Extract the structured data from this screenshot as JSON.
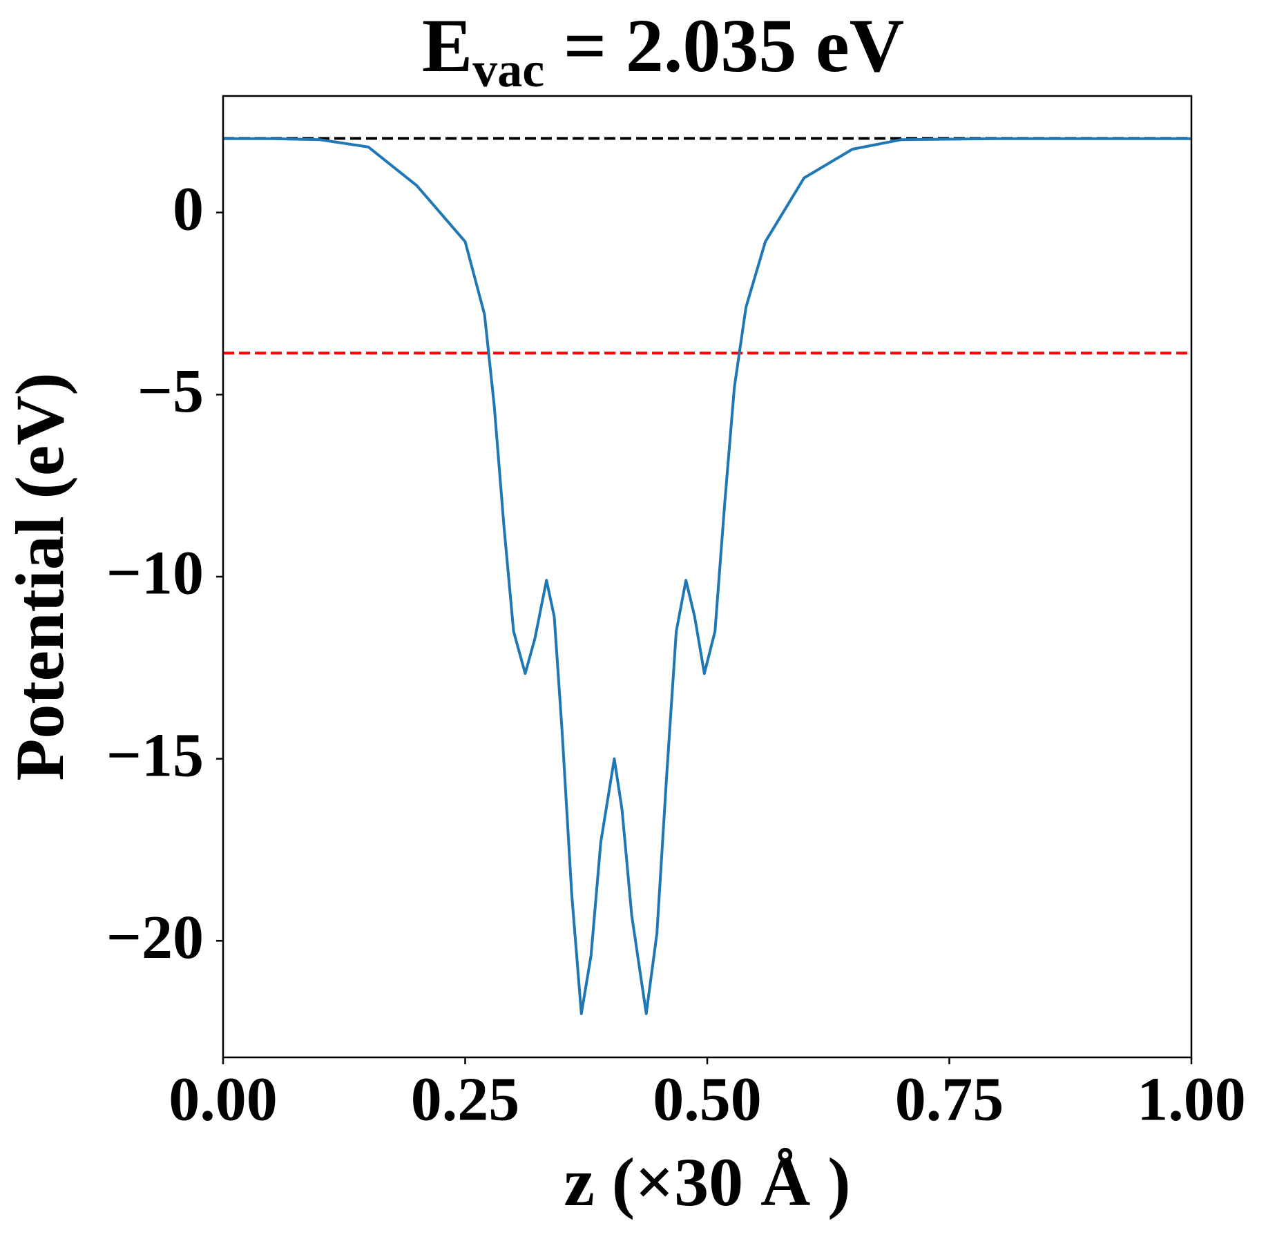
{
  "chart_data": {
    "type": "line",
    "title": {
      "main": "E",
      "sub": "vac",
      "rest": " = 2.035 eV"
    },
    "xlabel": "z (×30 Å )",
    "ylabel": "Potential (eV)",
    "xlim": [
      0,
      1
    ],
    "ylim": [
      -23.2,
      3.2
    ],
    "xticks": [
      {
        "value": 0,
        "label": "0.00"
      },
      {
        "value": 0.25,
        "label": "0.25"
      },
      {
        "value": 0.5,
        "label": "0.50"
      },
      {
        "value": 0.75,
        "label": "0.75"
      },
      {
        "value": 1,
        "label": "1.00"
      }
    ],
    "yticks": [
      0,
      {
        "value": -5,
        "label": "−5"
      },
      {
        "value": -10,
        "label": "−10"
      },
      {
        "value": -15,
        "label": "−15"
      },
      {
        "value": -20,
        "label": "−20"
      }
    ],
    "hlines": [
      {
        "value": 2.035,
        "color": "#000000"
      },
      {
        "value": -3.86,
        "color": "#ff0000"
      }
    ],
    "x": [
      0,
      0.05,
      0.1,
      0.15,
      0.2,
      0.25,
      0.27,
      0.28,
      0.29,
      0.3,
      0.312,
      0.322,
      0.334,
      0.342,
      0.35,
      0.36,
      0.37,
      0.38,
      0.39,
      0.404,
      0.412,
      0.422,
      0.437,
      0.448,
      0.458,
      0.468,
      0.478,
      0.487,
      0.497,
      0.508,
      0.518,
      0.528,
      0.54,
      0.56,
      0.6,
      0.65,
      0.7,
      0.8,
      0.9,
      1.0
    ],
    "series": [
      {
        "name": "potential",
        "color": "#1f77b4",
        "values": [
          2.03,
          2.03,
          2.0,
          1.8,
          0.74,
          -0.8,
          -2.8,
          -5.3,
          -8.6,
          -11.5,
          -12.66,
          -11.7,
          -10.1,
          -11.1,
          -14.2,
          -18.7,
          -22.0,
          -20.4,
          -17.3,
          -15.0,
          -16.4,
          -19.3,
          -22.0,
          -19.8,
          -15.5,
          -11.5,
          -10.1,
          -11.1,
          -12.66,
          -11.5,
          -8.0,
          -4.8,
          -2.6,
          -0.8,
          0.95,
          1.74,
          2.0,
          2.03,
          2.03,
          2.03
        ]
      }
    ]
  }
}
